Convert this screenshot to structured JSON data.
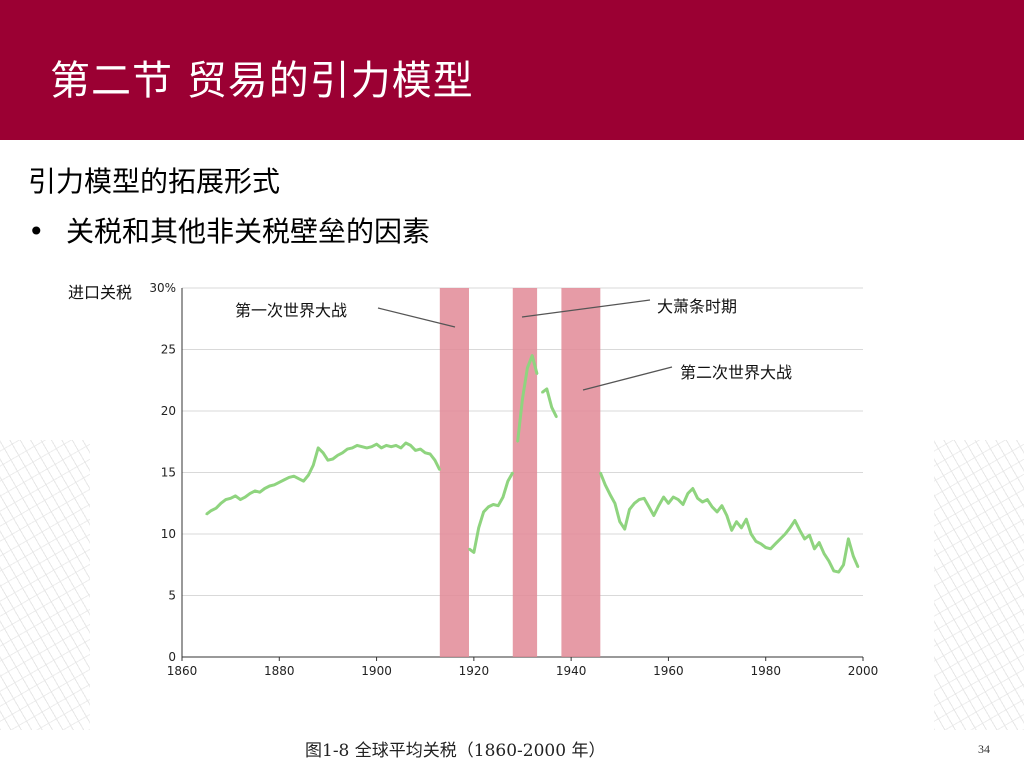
{
  "slide": {
    "title": "第二节 贸易的引力模型",
    "subtitle": "引力模型的拓展形式",
    "bullet_symbol": "•",
    "bullet": "关税和其他非关税壁垒的因素",
    "caption": "图1-8  全球平均关税（1860-2000 年）",
    "page_number": "34"
  },
  "colors": {
    "header": "#9b0033",
    "line": "#8fd47f",
    "band": "#e28a96",
    "grid": "#d9d9d9"
  },
  "chart_data": {
    "type": "line",
    "title": "",
    "xlabel": "",
    "ylabel": "进口关税",
    "xlim": [
      1860,
      2000
    ],
    "ylim": [
      0,
      30
    ],
    "x_ticks": [
      1860,
      1880,
      1900,
      1920,
      1940,
      1960,
      1980,
      2000
    ],
    "y_ticks": [
      0,
      5,
      10,
      15,
      20,
      25,
      30
    ],
    "y_tick_labels": [
      "0",
      "5",
      "10",
      "15",
      "20",
      "25",
      "30%"
    ],
    "grid": "horizontal",
    "bands": [
      {
        "label": "第一次世界大战",
        "start": 1913,
        "end": 1919
      },
      {
        "label": "大萧条时期",
        "start": 1928,
        "end": 1933
      },
      {
        "label": "第二次世界大战",
        "start": 1938,
        "end": 1946
      }
    ],
    "series": [
      {
        "segments": [
          [
            [
              1865,
              11.6
            ],
            [
              1866,
              11.9
            ],
            [
              1867,
              12.1
            ],
            [
              1868,
              12.5
            ],
            [
              1869,
              12.8
            ],
            [
              1870,
              12.9
            ],
            [
              1871,
              13.1
            ],
            [
              1872,
              12.8
            ],
            [
              1873,
              13.0
            ],
            [
              1874,
              13.3
            ],
            [
              1875,
              13.5
            ],
            [
              1876,
              13.4
            ],
            [
              1877,
              13.7
            ],
            [
              1878,
              13.9
            ],
            [
              1879,
              14.0
            ],
            [
              1880,
              14.2
            ],
            [
              1881,
              14.4
            ],
            [
              1882,
              14.6
            ],
            [
              1883,
              14.7
            ],
            [
              1884,
              14.5
            ],
            [
              1885,
              14.3
            ],
            [
              1886,
              14.8
            ],
            [
              1887,
              15.6
            ],
            [
              1888,
              17.0
            ],
            [
              1889,
              16.6
            ],
            [
              1890,
              16.0
            ],
            [
              1891,
              16.1
            ],
            [
              1892,
              16.4
            ],
            [
              1893,
              16.6
            ],
            [
              1894,
              16.9
            ],
            [
              1895,
              17.0
            ],
            [
              1896,
              17.2
            ],
            [
              1897,
              17.1
            ],
            [
              1898,
              17.0
            ],
            [
              1899,
              17.1
            ],
            [
              1900,
              17.3
            ],
            [
              1901,
              17.0
            ],
            [
              1902,
              17.2
            ],
            [
              1903,
              17.1
            ],
            [
              1904,
              17.2
            ],
            [
              1905,
              17.0
            ],
            [
              1906,
              17.4
            ],
            [
              1907,
              17.2
            ],
            [
              1908,
              16.8
            ],
            [
              1909,
              16.9
            ],
            [
              1910,
              16.6
            ],
            [
              1911,
              16.5
            ],
            [
              1912,
              16.0
            ],
            [
              1913,
              15.2
            ]
          ],
          [
            [
              1919,
              8.8
            ],
            [
              1920,
              8.5
            ],
            [
              1921,
              10.5
            ],
            [
              1922,
              11.8
            ],
            [
              1923,
              12.2
            ],
            [
              1924,
              12.4
            ],
            [
              1925,
              12.3
            ],
            [
              1926,
              13.0
            ],
            [
              1927,
              14.3
            ],
            [
              1928,
              15.0
            ]
          ],
          [
            [
              1929,
              17.5
            ],
            [
              1930,
              21.0
            ],
            [
              1931,
              23.5
            ],
            [
              1932,
              24.5
            ],
            [
              1933,
              23.0
            ]
          ],
          [
            [
              1934,
              21.5
            ],
            [
              1935,
              21.8
            ],
            [
              1936,
              20.3
            ],
            [
              1937,
              19.5
            ]
          ],
          [
            [
              1946,
              15.0
            ],
            [
              1947,
              14.0
            ],
            [
              1948,
              13.2
            ],
            [
              1949,
              12.5
            ],
            [
              1950,
              11.0
            ],
            [
              1951,
              10.4
            ],
            [
              1952,
              12.0
            ],
            [
              1953,
              12.5
            ],
            [
              1954,
              12.8
            ],
            [
              1955,
              12.9
            ],
            [
              1956,
              12.2
            ],
            [
              1957,
              11.5
            ],
            [
              1958,
              12.3
            ],
            [
              1959,
              13.0
            ],
            [
              1960,
              12.5
            ],
            [
              1961,
              13.0
            ],
            [
              1962,
              12.8
            ],
            [
              1963,
              12.4
            ],
            [
              1964,
              13.3
            ],
            [
              1965,
              13.7
            ],
            [
              1966,
              12.9
            ],
            [
              1967,
              12.6
            ],
            [
              1968,
              12.8
            ],
            [
              1969,
              12.2
            ],
            [
              1970,
              11.8
            ],
            [
              1971,
              12.3
            ],
            [
              1972,
              11.5
            ],
            [
              1973,
              10.3
            ],
            [
              1974,
              11.0
            ],
            [
              1975,
              10.5
            ],
            [
              1976,
              11.2
            ],
            [
              1977,
              10.0
            ],
            [
              1978,
              9.4
            ],
            [
              1979,
              9.2
            ],
            [
              1980,
              8.9
            ],
            [
              1981,
              8.8
            ],
            [
              1982,
              9.2
            ],
            [
              1983,
              9.6
            ],
            [
              1984,
              10.0
            ],
            [
              1985,
              10.5
            ],
            [
              1986,
              11.1
            ],
            [
              1987,
              10.3
            ],
            [
              1988,
              9.6
            ],
            [
              1989,
              9.9
            ],
            [
              1990,
              8.8
            ],
            [
              1991,
              9.3
            ],
            [
              1992,
              8.4
            ],
            [
              1993,
              7.8
            ],
            [
              1994,
              7.0
            ],
            [
              1995,
              6.9
            ],
            [
              1996,
              7.5
            ],
            [
              1997,
              9.6
            ],
            [
              1998,
              8.2
            ],
            [
              1999,
              7.3
            ]
          ]
        ]
      }
    ]
  }
}
